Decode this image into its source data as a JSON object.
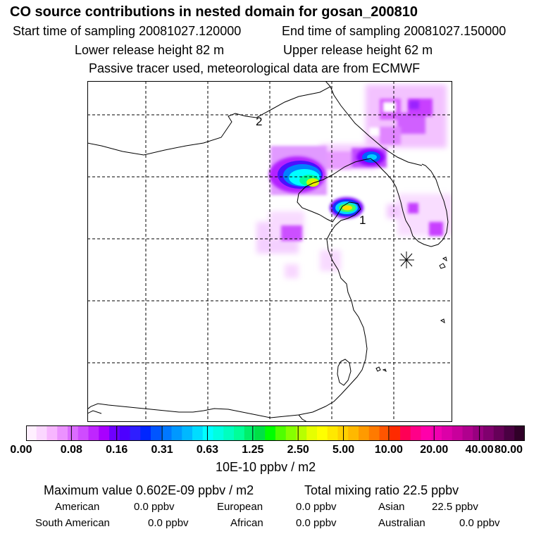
{
  "header": {
    "title": "CO  source contributions in nested domain for gosan_200810",
    "start_sampling": "Start time of sampling 20081027.120000",
    "end_sampling": "End time of sampling 20081027.150000",
    "lower_release": "Lower release height   82 m",
    "upper_release": "Upper release height   62 m",
    "tracer_note": "Passive tracer used, meteorological data are from ECMWF"
  },
  "map": {
    "markers": [
      {
        "label": "1",
        "type": "release-point"
      },
      {
        "label": "2",
        "type": "release-point"
      },
      {
        "label": "",
        "type": "receptor-star"
      }
    ]
  },
  "colorbar": {
    "tick_labels": [
      "0.00",
      "0.08",
      "0.16",
      "0.31",
      "0.63",
      "1.25",
      "2.50",
      "5.00",
      "10.00",
      "20.00",
      "40.00",
      "80.00"
    ],
    "colors": [
      "#fff0ff",
      "#fbd7ff",
      "#f7b6ff",
      "#eb92ff",
      "#db6cff",
      "#cf4cff",
      "#bf26ff",
      "#a800ff",
      "#6f00ff",
      "#4d00ff",
      "#2f1fff",
      "#0026ff",
      "#0055ff",
      "#0078ff",
      "#0098ff",
      "#00b8ff",
      "#00dcff",
      "#00ffff",
      "#00ffe0",
      "#00ffbf",
      "#00ff99",
      "#00ef6a",
      "#00e045",
      "#00ff00",
      "#4fff00",
      "#86ff00",
      "#b8ff00",
      "#e6ff00",
      "#ffff00",
      "#ffe800",
      "#ffd000",
      "#ffb800",
      "#ff9a00",
      "#ff7a00",
      "#ff5500",
      "#ff2a00",
      "#ff0055",
      "#ff0088",
      "#ff00aa",
      "#f000b0",
      "#dc00a8",
      "#c8009c",
      "#b0008e",
      "#980080",
      "#80006e",
      "#660058",
      "#4a0042",
      "#300028"
    ],
    "unit": "10E-10 ppbv / m2"
  },
  "stats": {
    "maximum": "Maximum value  0.602E-09 ppbv / m2",
    "total": "Total mixing ratio       22.5 ppbv",
    "regions": [
      {
        "name": "American",
        "value": "0.0 ppbv"
      },
      {
        "name": "European",
        "value": "0.0 ppbv"
      },
      {
        "name": "Asian",
        "value": "22.5 ppbv"
      },
      {
        "name": "South American",
        "value": "0.0 ppbv"
      },
      {
        "name": "African",
        "value": "0.0 ppbv"
      },
      {
        "name": "Australian",
        "value": "0.0 ppbv"
      }
    ]
  }
}
